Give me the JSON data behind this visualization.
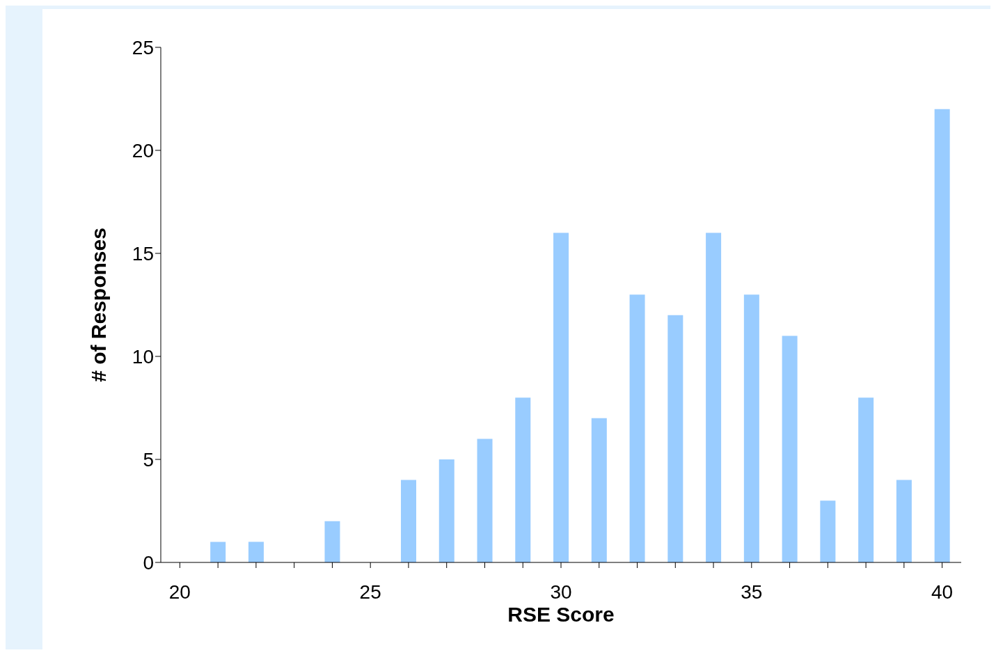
{
  "chart_data": {
    "type": "bar",
    "xlabel": "RSE Score",
    "ylabel": "# of Responses",
    "categories": [
      "20",
      null,
      null,
      null,
      null,
      "25",
      null,
      null,
      null,
      null,
      "30",
      null,
      null,
      null,
      null,
      "35",
      null,
      null,
      null,
      null,
      "40"
    ],
    "values": [
      0,
      1,
      1,
      0,
      2,
      0,
      4,
      5,
      6,
      8,
      16,
      7,
      13,
      12,
      16,
      13,
      11,
      3,
      8,
      4,
      22
    ],
    "color": "#99ccff",
    "ylim": [
      0,
      25
    ],
    "yticks": [
      0,
      5,
      10,
      15,
      20,
      25
    ],
    "grid": false,
    "legend": false
  }
}
